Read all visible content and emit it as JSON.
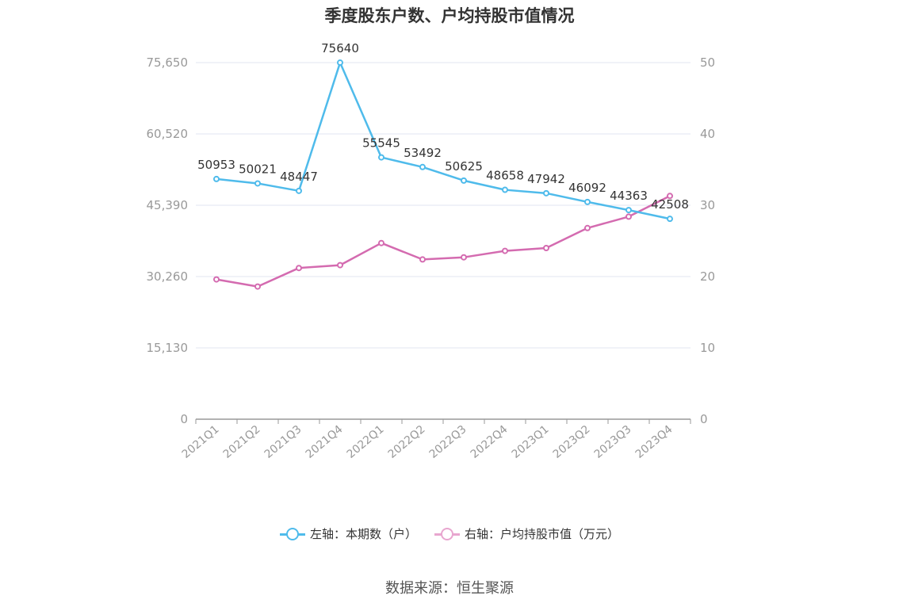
{
  "title": "季度股东户数、户均持股市值情况",
  "source": "数据来源：恒生聚源",
  "legend": {
    "left_label": "左轴：本期数（户）",
    "right_label": "右轴：户均持股市值（万元）"
  },
  "colors": {
    "left_series": "#4fbbeb",
    "right_series": "#d46bb0",
    "right_legend": "#e8a6cf",
    "grid": "#e2e4f2",
    "axis": "#999999",
    "tick_text": "#999999"
  },
  "chart_data": {
    "type": "line",
    "title": "季度股东户数、户均持股市值情况",
    "categories": [
      "2021Q1",
      "2021Q2",
      "2021Q3",
      "2021Q4",
      "2022Q1",
      "2022Q2",
      "2022Q3",
      "2022Q4",
      "2023Q1",
      "2023Q2",
      "2023Q3",
      "2023Q4"
    ],
    "left_axis": {
      "ylim": [
        0,
        75650
      ],
      "ticks": [
        0,
        15130,
        30260,
        45390,
        60520,
        75650
      ],
      "tick_labels": [
        "0",
        "15,130",
        "30,260",
        "45,390",
        "60,520",
        "75,650"
      ]
    },
    "right_axis": {
      "ylim": [
        0,
        50
      ],
      "ticks": [
        0,
        10,
        20,
        30,
        40,
        50
      ],
      "tick_labels": [
        "0",
        "10",
        "20",
        "30",
        "40",
        "50"
      ]
    },
    "series": [
      {
        "name": "左轴：本期数（户）",
        "axis": "left",
        "values": [
          50953,
          50021,
          48447,
          75640,
          55545,
          53492,
          50625,
          48658,
          47942,
          46092,
          44363,
          42508
        ],
        "labels": [
          "50953",
          "50021",
          "48447",
          "75640",
          "55545",
          "53492",
          "50625",
          "48658",
          "47942",
          "46092",
          "44363",
          "42508"
        ]
      },
      {
        "name": "右轴：户均持股市值（万元）",
        "axis": "right",
        "values": [
          19.6,
          18.6,
          21.2,
          21.6,
          24.7,
          22.4,
          22.7,
          23.6,
          24.0,
          26.8,
          28.4,
          31.3
        ]
      }
    ],
    "grid": true,
    "legend_position": "bottom"
  }
}
